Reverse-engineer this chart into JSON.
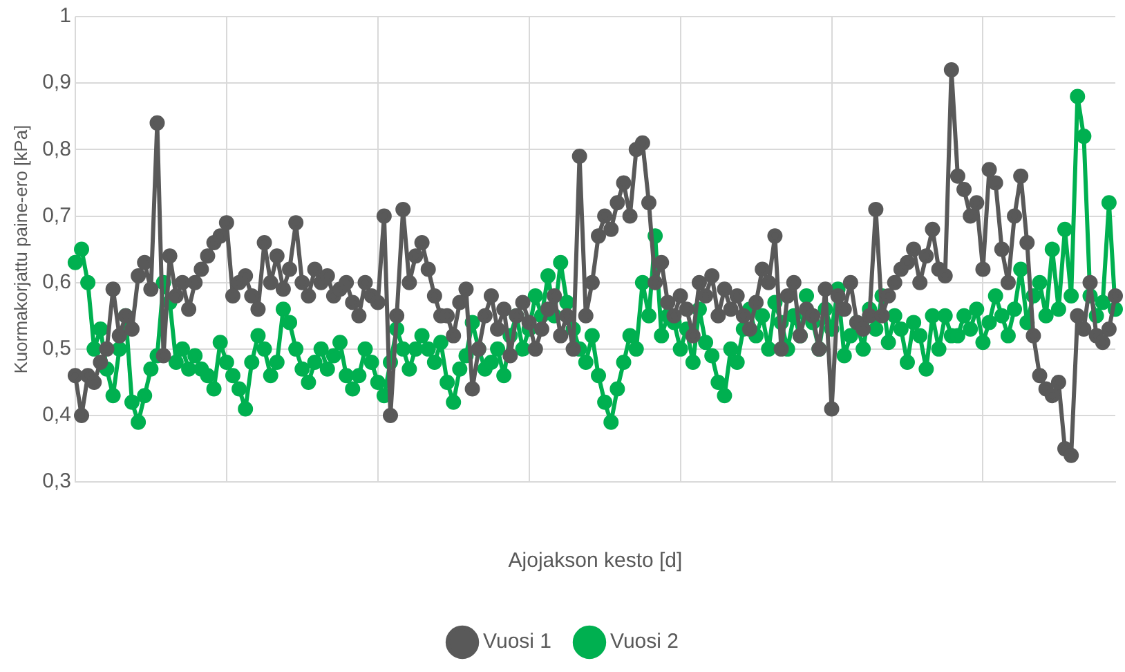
{
  "chart_data": {
    "type": "line",
    "xlabel": "Ajojakson kesto [d]",
    "ylabel": "Kuormakorjattu paine-ero [kPa]",
    "categories": [
      null,
      null,
      null,
      null,
      null,
      null,
      null,
      null,
      null,
      null,
      null,
      null,
      null,
      null,
      null,
      null,
      null,
      null,
      null,
      null,
      null,
      null,
      null,
      null,
      null,
      null,
      null,
      null,
      null,
      null,
      null,
      null,
      null,
      null,
      null,
      null,
      null,
      null,
      null,
      null,
      null,
      null,
      null,
      null,
      null,
      null,
      null,
      null,
      null,
      null,
      null,
      null,
      null,
      null,
      null,
      null,
      null,
      null,
      null,
      null,
      null,
      null,
      null,
      null,
      null,
      null,
      null,
      null,
      null,
      null,
      null,
      null,
      null,
      null,
      null,
      null,
      null,
      null,
      null,
      null,
      null,
      null,
      null,
      null,
      null,
      null,
      null,
      null,
      null,
      null,
      null,
      null,
      null,
      null,
      null,
      null,
      null,
      null,
      null,
      null,
      null,
      null,
      null,
      null,
      null,
      null,
      null,
      null,
      null,
      null,
      null,
      null,
      null,
      null,
      null,
      null,
      null,
      null,
      null,
      null,
      null,
      null,
      null,
      null,
      null,
      null,
      null,
      null,
      null,
      null,
      null,
      null,
      null,
      null,
      null,
      null,
      null,
      null,
      null,
      null,
      null,
      null,
      null,
      null,
      null,
      null,
      null,
      null,
      null,
      null,
      null,
      null,
      null,
      null,
      null,
      null,
      null,
      null,
      null,
      null,
      null,
      null,
      null,
      null,
      null,
      null
    ],
    "series": [
      {
        "name": "Vuosi 1",
        "color": "#595959",
        "values": [
          0.46,
          0.4,
          0.46,
          0.45,
          0.48,
          0.5,
          0.59,
          0.52,
          0.55,
          0.53,
          0.61,
          0.63,
          0.59,
          0.84,
          0.49,
          0.64,
          0.58,
          0.6,
          0.56,
          0.6,
          0.62,
          0.64,
          0.66,
          0.67,
          0.69,
          0.58,
          0.6,
          0.61,
          0.58,
          0.56,
          0.66,
          0.6,
          0.64,
          0.59,
          0.62,
          0.69,
          0.6,
          0.58,
          0.62,
          0.6,
          0.61,
          0.58,
          0.59,
          0.6,
          0.57,
          0.55,
          0.6,
          0.58,
          0.57,
          0.7,
          0.4,
          0.55,
          0.71,
          0.6,
          0.64,
          0.66,
          0.62,
          0.58,
          0.55,
          0.55,
          0.52,
          0.57,
          0.59,
          0.44,
          0.5,
          0.55,
          0.58,
          0.53,
          0.56,
          0.49,
          0.55,
          0.57,
          0.54,
          0.5,
          0.53,
          0.56,
          0.58,
          0.52,
          0.55,
          0.5,
          0.79,
          0.55,
          0.6,
          0.67,
          0.7,
          0.68,
          0.72,
          0.75,
          0.7,
          0.8,
          0.81,
          0.72,
          0.6,
          0.63,
          0.57,
          0.55,
          0.58,
          0.56,
          0.52,
          0.6,
          0.58,
          0.61,
          0.55,
          0.59,
          0.56,
          0.58,
          0.55,
          0.53,
          0.57,
          0.62,
          0.6,
          0.67,
          0.5,
          0.58,
          0.6,
          0.52,
          0.56,
          0.55,
          0.5,
          0.59,
          0.41,
          0.58,
          0.56,
          0.6,
          0.54,
          0.53,
          0.55,
          0.71,
          0.55,
          0.58,
          0.6,
          0.62,
          0.63,
          0.65,
          0.6,
          0.64,
          0.68,
          0.62,
          0.61,
          0.92,
          0.76,
          0.74,
          0.7,
          0.72,
          0.62,
          0.77,
          0.75,
          0.65,
          0.6,
          0.7,
          0.76,
          0.66,
          0.52,
          0.46,
          0.44,
          0.43,
          0.45,
          0.35,
          0.34,
          0.55,
          0.53,
          0.6,
          0.52,
          0.51,
          0.53,
          0.58
        ]
      },
      {
        "name": "Vuosi 2",
        "color": "#00b050",
        "values": [
          0.63,
          0.65,
          0.6,
          0.5,
          0.53,
          0.47,
          0.43,
          0.5,
          0.55,
          0.42,
          0.39,
          0.43,
          0.47,
          0.49,
          0.6,
          0.57,
          0.48,
          0.5,
          0.47,
          0.49,
          0.47,
          0.46,
          0.44,
          0.51,
          0.48,
          0.46,
          0.44,
          0.41,
          0.48,
          0.52,
          0.5,
          0.46,
          0.48,
          0.56,
          0.54,
          0.5,
          0.47,
          0.45,
          0.48,
          0.5,
          0.47,
          0.49,
          0.51,
          0.46,
          0.44,
          0.46,
          0.5,
          0.48,
          0.45,
          0.43,
          0.48,
          0.53,
          0.5,
          0.47,
          0.5,
          0.52,
          0.5,
          0.48,
          0.51,
          0.45,
          0.42,
          0.47,
          0.49,
          0.54,
          0.5,
          0.47,
          0.48,
          0.5,
          0.46,
          0.52,
          0.55,
          0.5,
          0.53,
          0.58,
          0.55,
          0.61,
          0.55,
          0.63,
          0.57,
          0.53,
          0.5,
          0.48,
          0.52,
          0.46,
          0.42,
          0.39,
          0.44,
          0.48,
          0.52,
          0.5,
          0.6,
          0.55,
          0.67,
          0.52,
          0.55,
          0.54,
          0.5,
          0.53,
          0.48,
          0.56,
          0.51,
          0.49,
          0.45,
          0.43,
          0.5,
          0.48,
          0.53,
          0.56,
          0.52,
          0.55,
          0.5,
          0.57,
          0.54,
          0.5,
          0.55,
          0.52,
          0.58,
          0.54,
          0.5,
          0.56,
          0.53,
          0.59,
          0.49,
          0.52,
          0.54,
          0.5,
          0.56,
          0.53,
          0.58,
          0.51,
          0.55,
          0.53,
          0.48,
          0.54,
          0.52,
          0.47,
          0.55,
          0.5,
          0.55,
          0.52,
          0.52,
          0.55,
          0.53,
          0.56,
          0.51,
          0.54,
          0.58,
          0.55,
          0.52,
          0.56,
          0.62,
          0.54,
          0.58,
          0.6,
          0.55,
          0.65,
          0.56,
          0.68,
          0.58,
          0.88,
          0.82,
          0.58,
          0.55,
          0.57,
          0.72,
          0.56
        ]
      }
    ],
    "ylim": [
      0.3,
      1
    ],
    "yticks": [
      {
        "value": 0.3,
        "label": "0,3"
      },
      {
        "value": 0.4,
        "label": "0,4"
      },
      {
        "value": 0.5,
        "label": "0,5"
      },
      {
        "value": 0.6,
        "label": "0,6"
      },
      {
        "value": 0.7,
        "label": "0,7"
      },
      {
        "value": 0.8,
        "label": "0,8"
      },
      {
        "value": 0.9,
        "label": "0,9"
      },
      {
        "value": 1,
        "label": "1"
      }
    ],
    "grid": true,
    "legend": "bottom",
    "marker": "circle",
    "line_style": "solid"
  }
}
